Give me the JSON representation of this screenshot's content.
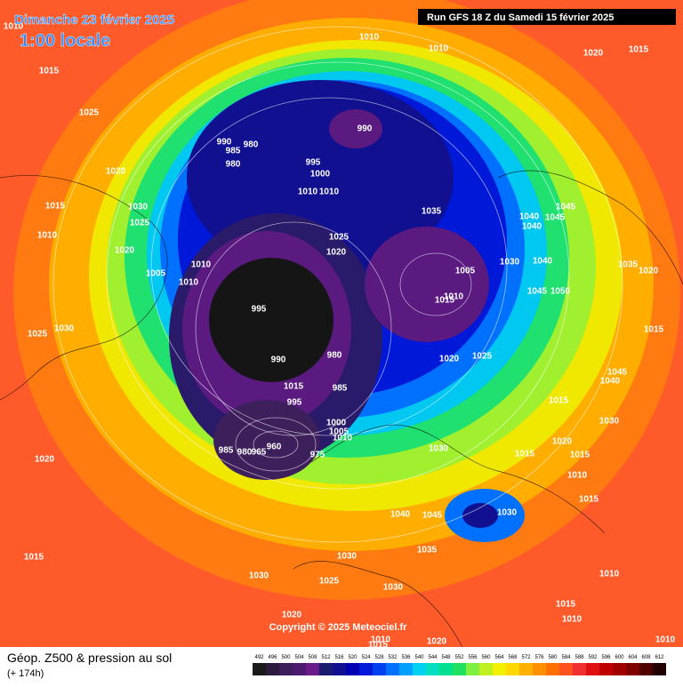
{
  "header": {
    "date": "Dimanche 23 février 2025",
    "time": "1:00 locale",
    "run": "Run GFS 18 Z du Samedi 15 février 2025"
  },
  "footer": {
    "title": "Géop. Z500 & pression au sol",
    "lead": "(+ 174h)",
    "copyright": "Copyright © 2025 Meteociel.fr"
  },
  "isobar_labels": [
    1010,
    1010,
    1010,
    1020,
    1015,
    1015,
    1025,
    990,
    990,
    980,
    985,
    980,
    995,
    1000,
    1010,
    1010,
    1020,
    1015,
    1030,
    1025,
    1010,
    1035,
    1040,
    1045,
    1045,
    1040,
    1025,
    1020,
    1020,
    1005,
    1010,
    1010,
    995,
    1005,
    1010,
    1015,
    1030,
    1040,
    1035,
    1020,
    1045,
    1050,
    1025,
    1030,
    1015,
    1020,
    1025,
    990,
    980,
    1015,
    985,
    995,
    1045,
    1040,
    1015,
    1030,
    1000,
    1005,
    1010,
    1030,
    1020,
    1015,
    1015,
    960,
    985,
    980,
    965,
    975,
    1020,
    1010,
    1040,
    1045,
    1030,
    1015,
    1035,
    1030,
    1015,
    1030,
    1025,
    1030,
    1010,
    1020,
    1015,
    1010,
    1010,
    1015,
    1020,
    1010
  ],
  "scale": {
    "values": [
      492,
      496,
      500,
      504,
      508,
      512,
      516,
      520,
      524,
      528,
      532,
      536,
      540,
      544,
      548,
      552,
      556,
      560,
      564,
      568,
      572,
      576,
      580,
      584,
      588,
      592,
      596,
      600,
      604,
      608,
      612
    ],
    "colors": [
      "#1a1a1a",
      "#2d1b3d",
      "#3d1f5c",
      "#4b1a6e",
      "#6a1b8a",
      "#1a1a6e",
      "#101090",
      "#0000b4",
      "#0018d8",
      "#0040f0",
      "#0070ff",
      "#00a0ff",
      "#00d0f0",
      "#00e0c0",
      "#00e090",
      "#20e060",
      "#80f040",
      "#c0f020",
      "#f0f000",
      "#ffd800",
      "#ffb000",
      "#ff9000",
      "#ff7000",
      "#ff5020",
      "#f03030",
      "#e01010",
      "#c00000",
      "#a00000",
      "#800000",
      "#500000",
      "#200000"
    ]
  }
}
